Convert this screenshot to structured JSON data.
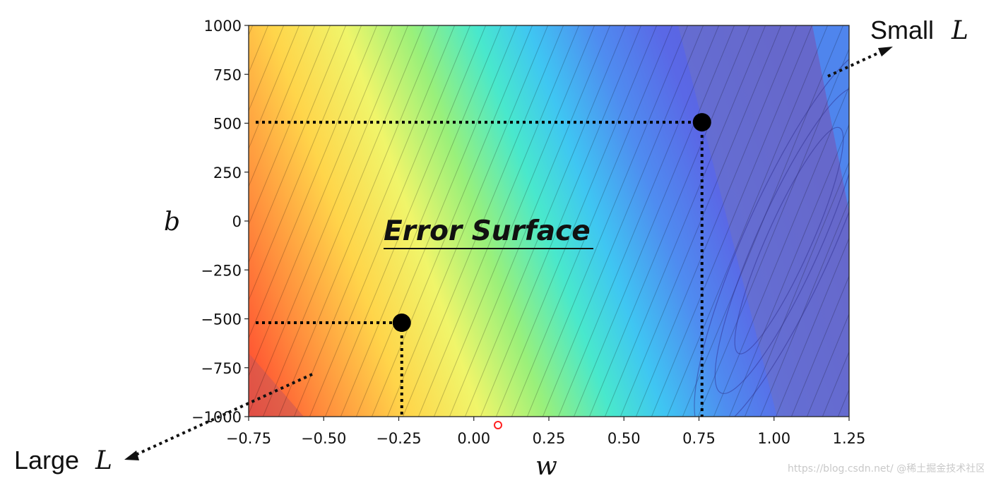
{
  "chart_data": {
    "type": "contour",
    "title": "Error Surface",
    "xlabel": "w",
    "ylabel": "b",
    "xlim": [
      -0.75,
      1.25
    ],
    "ylim": [
      -1000,
      1000
    ],
    "x_ticks": [
      "−0.75",
      "−0.50",
      "−0.25",
      "0.00",
      "0.25",
      "0.50",
      "0.75",
      "1.00",
      "1.25"
    ],
    "y_ticks": [
      "1000",
      "750",
      "500",
      "250",
      "0",
      "−250",
      "−500",
      "−750",
      "−1000"
    ],
    "x_tick_values": [
      -0.75,
      -0.5,
      -0.25,
      0.0,
      0.25,
      0.5,
      0.75,
      1.0,
      1.25
    ],
    "y_tick_values": [
      1000,
      750,
      500,
      250,
      0,
      -250,
      -500,
      -750,
      -1000
    ],
    "colormap": "jet_r",
    "minimum_region": {
      "w": 1.05,
      "b": -100
    },
    "points": [
      {
        "w": 0.76,
        "b": 505
      },
      {
        "w": -0.24,
        "b": -520
      }
    ],
    "annotations": [
      {
        "text": "Small",
        "math": "L",
        "position": "top-right"
      },
      {
        "text": "Large",
        "math": "L",
        "position": "bottom-left"
      }
    ],
    "grid": false
  },
  "watermark": "https://blog.csdn.net/ @稀土掘金技术社区"
}
